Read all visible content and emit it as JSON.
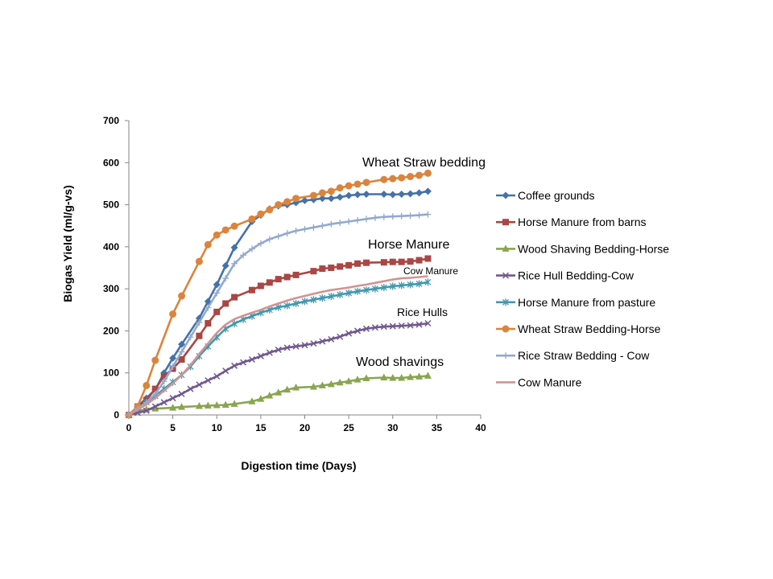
{
  "chart_data": {
    "type": "line",
    "xlabel": "Digestion time (Days)",
    "ylabel": "Biogas Yield (ml/g-vs)",
    "xlim": [
      0,
      40
    ],
    "ylim": [
      0,
      700
    ],
    "xticks": [
      "0",
      "5",
      "10",
      "15",
      "20",
      "25",
      "30",
      "35",
      "40"
    ],
    "yticks": [
      "0",
      "100",
      "200",
      "300",
      "400",
      "500",
      "600",
      "700"
    ],
    "grid": false,
    "legend_position": "right",
    "series": [
      {
        "name": "Coffee grounds",
        "color": "#4572A7",
        "marker": "diamond",
        "x": [
          0,
          1,
          2,
          3,
          4,
          5,
          6,
          8,
          9,
          10,
          11,
          12,
          14,
          15,
          16,
          17,
          18,
          19,
          20,
          21,
          22,
          23,
          24,
          25,
          26,
          27,
          29,
          30,
          31,
          32,
          33,
          34
        ],
        "y": [
          0,
          20,
          40,
          60,
          100,
          135,
          168,
          230,
          270,
          310,
          355,
          398,
          460,
          475,
          490,
          497,
          500,
          505,
          510,
          512,
          515,
          515,
          518,
          522,
          524,
          525,
          525,
          524,
          525,
          526,
          528,
          532
        ]
      },
      {
        "name": "Horse Manure from barns",
        "color": "#AA4643",
        "marker": "square",
        "x": [
          0,
          1,
          2,
          3,
          4,
          5,
          6,
          8,
          9,
          10,
          11,
          12,
          14,
          15,
          16,
          17,
          18,
          19,
          21,
          22,
          23,
          24,
          25,
          26,
          27,
          29,
          30,
          31,
          32,
          33,
          34
        ],
        "y": [
          0,
          20,
          35,
          62,
          92,
          110,
          132,
          188,
          218,
          245,
          265,
          280,
          297,
          307,
          315,
          323,
          328,
          333,
          342,
          348,
          350,
          353,
          356,
          360,
          362,
          363,
          364,
          364,
          365,
          368,
          372
        ]
      },
      {
        "name": "Wood Shaving Bedding-Horse",
        "color": "#89A54E",
        "marker": "triangle",
        "x": [
          0,
          1,
          2,
          3,
          5,
          6,
          8,
          9,
          10,
          11,
          12,
          14,
          15,
          16,
          17,
          18,
          19,
          21,
          22,
          23,
          24,
          25,
          26,
          27,
          29,
          30,
          31,
          32,
          33,
          34
        ],
        "y": [
          0,
          10,
          13,
          15,
          17,
          19,
          21,
          22,
          23,
          24,
          26,
          32,
          38,
          46,
          53,
          60,
          65,
          67,
          70,
          73,
          77,
          80,
          84,
          87,
          89,
          88,
          88,
          90,
          91,
          93
        ]
      },
      {
        "name": "Rice Hull Bedding-Cow",
        "color": "#71588F",
        "marker": "x",
        "x": [
          0,
          1,
          2,
          3,
          4,
          5,
          6,
          7,
          8,
          9,
          10,
          11,
          12,
          13,
          14,
          15,
          16,
          17,
          18,
          19,
          20,
          21,
          22,
          23,
          24,
          25,
          26,
          27,
          28,
          29,
          30,
          31,
          32,
          33,
          34
        ],
        "y": [
          0,
          5,
          10,
          20,
          30,
          40,
          50,
          62,
          72,
          82,
          92,
          105,
          117,
          125,
          132,
          140,
          148,
          155,
          160,
          163,
          166,
          170,
          175,
          180,
          186,
          194,
          200,
          205,
          208,
          210,
          211,
          212,
          213,
          215,
          218
        ]
      },
      {
        "name": "Horse Manure from pasture",
        "color": "#4198AF",
        "marker": "star",
        "x": [
          0,
          1,
          2,
          3,
          4,
          5,
          6,
          7,
          8,
          9,
          10,
          11,
          12,
          13,
          14,
          15,
          16,
          17,
          18,
          19,
          20,
          21,
          22,
          23,
          24,
          25,
          26,
          27,
          28,
          29,
          30,
          31,
          32,
          33,
          34
        ],
        "y": [
          0,
          15,
          30,
          45,
          62,
          78,
          95,
          115,
          140,
          163,
          185,
          205,
          217,
          227,
          235,
          243,
          250,
          256,
          260,
          265,
          270,
          274,
          278,
          282,
          286,
          290,
          294,
          297,
          300,
          303,
          306,
          308,
          310,
          312,
          316
        ]
      },
      {
        "name": "Wheat Straw Bedding-Horse",
        "color": "#DB843D",
        "marker": "circle",
        "x": [
          0,
          1,
          2,
          3,
          5,
          6,
          8,
          9,
          10,
          11,
          12,
          14,
          15,
          16,
          17,
          18,
          19,
          21,
          22,
          23,
          24,
          25,
          26,
          27,
          29,
          30,
          31,
          32,
          33,
          34
        ],
        "y": [
          0,
          20,
          70,
          130,
          240,
          283,
          365,
          405,
          428,
          440,
          449,
          466,
          478,
          488,
          500,
          507,
          515,
          522,
          528,
          532,
          540,
          545,
          549,
          553,
          560,
          562,
          564,
          567,
          570,
          575
        ]
      },
      {
        "name": "Rice Straw Bedding - Cow",
        "color": "#93A9CF",
        "marker": "plus",
        "x": [
          0,
          1,
          2,
          3,
          4,
          5,
          6,
          7,
          8,
          9,
          10,
          11,
          12,
          13,
          14,
          15,
          16,
          17,
          18,
          19,
          20,
          21,
          22,
          23,
          24,
          25,
          26,
          27,
          28,
          29,
          30,
          31,
          32,
          33,
          34
        ],
        "y": [
          0,
          15,
          30,
          50,
          80,
          115,
          150,
          185,
          220,
          255,
          290,
          325,
          360,
          380,
          395,
          408,
          418,
          425,
          432,
          438,
          442,
          446,
          450,
          454,
          457,
          460,
          463,
          466,
          469,
          471,
          472,
          473,
          474,
          475,
          477
        ]
      },
      {
        "name": "Cow Manure",
        "color": "#D19392",
        "marker": "none",
        "x": [
          0,
          2,
          3,
          4,
          5,
          6,
          7,
          8,
          9,
          10,
          11,
          12,
          13,
          14,
          15,
          16,
          17,
          18,
          19,
          20,
          21,
          22,
          23,
          24,
          25,
          26,
          27,
          28,
          29,
          30,
          31,
          32,
          33,
          34
        ],
        "y": [
          0,
          25,
          40,
          58,
          75,
          95,
          118,
          145,
          170,
          195,
          215,
          228,
          236,
          243,
          250,
          258,
          265,
          272,
          278,
          283,
          288,
          293,
          297,
          300,
          303,
          307,
          310,
          314,
          318,
          322,
          325,
          326,
          328,
          330
        ]
      }
    ],
    "annotations": [
      {
        "text": "Wheat Straw bedding"
      },
      {
        "text": "Horse Manure"
      },
      {
        "text": "Cow Manure"
      },
      {
        "text": "Rice Hulls"
      },
      {
        "text": "Wood shavings"
      }
    ]
  }
}
